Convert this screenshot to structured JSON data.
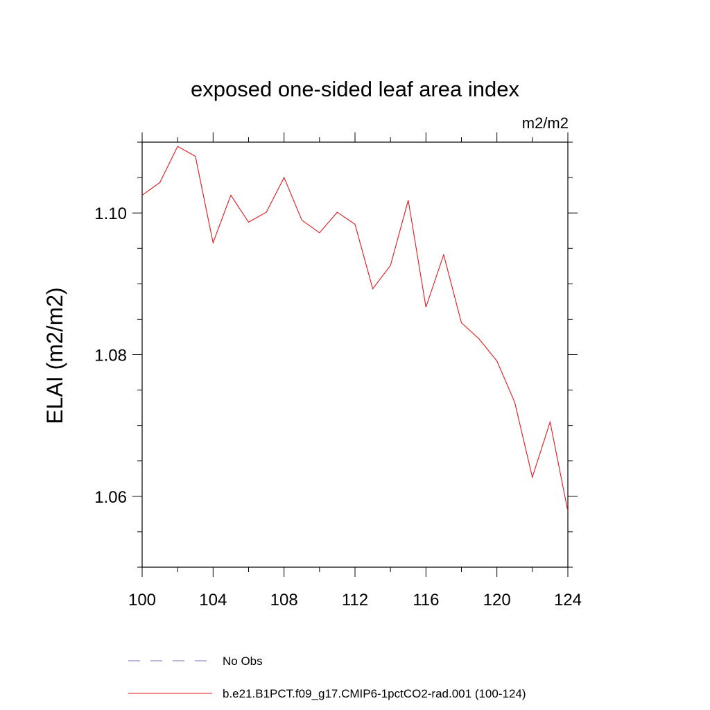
{
  "chart_data": {
    "type": "line",
    "title": "exposed one-sided leaf area index",
    "units_label": "m2/m2",
    "ylabel": "ELAI  (m2/m2)",
    "xlabel": "",
    "xlim": [
      100,
      124
    ],
    "ylim": [
      1.05,
      1.11
    ],
    "x_ticks": [
      100,
      104,
      108,
      112,
      116,
      120,
      124
    ],
    "x_tick_labels": [
      "100",
      "104",
      "108",
      "112",
      "116",
      "120",
      "124"
    ],
    "y_ticks": [
      1.06,
      1.08,
      1.1
    ],
    "y_tick_labels": [
      "1.06",
      "1.08",
      "1.10"
    ],
    "grid": false,
    "legend_position": "bottom",
    "series": [
      {
        "name": "No Obs",
        "color": "#7b6fb4",
        "dashed": true,
        "x": [],
        "values": []
      },
      {
        "name": "b.e21.B1PCT.f09_g17.CMIP6-1pctCO2-rad.001 (100-124)",
        "color": "#e8141c",
        "dashed": false,
        "x": [
          100,
          101,
          102,
          103,
          104,
          105,
          106,
          107,
          108,
          109,
          110,
          111,
          112,
          113,
          114,
          115,
          116,
          117,
          118,
          119,
          120,
          121,
          122,
          123,
          124
        ],
        "values": [
          1.1025,
          1.1043,
          1.1094,
          1.108,
          1.0958,
          1.1025,
          1.0987,
          1.1001,
          1.105,
          1.099,
          1.0972,
          1.1001,
          1.0984,
          1.0893,
          1.0926,
          1.1018,
          1.0867,
          1.0941,
          1.0845,
          1.0822,
          1.0791,
          1.0733,
          1.0627,
          1.0705,
          1.0579
        ]
      }
    ]
  }
}
